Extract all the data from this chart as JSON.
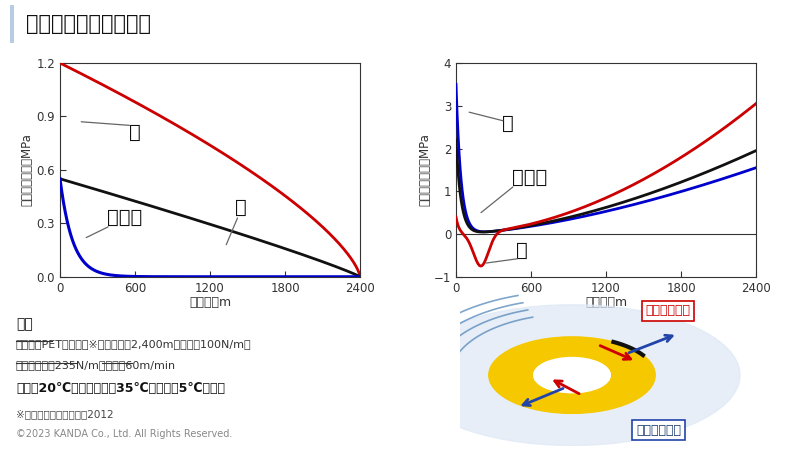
{
  "title": "数値シミュレーション",
  "title_bar_color": "#b8cce4",
  "bg_color": "#ffffff",
  "left_ylabel": "半径方向応力，MPa",
  "right_ylabel": "円周方向応力，MPa",
  "xlabel": "巻き長，m",
  "xlim": [
    0,
    2400
  ],
  "left_ylim": [
    0,
    1.2
  ],
  "right_ylim": [
    -1,
    4
  ],
  "left_yticks": [
    0,
    0.3,
    0.6,
    0.9,
    1.2
  ],
  "right_yticks": [
    -1,
    0,
    1,
    2,
    3,
    4
  ],
  "xticks": [
    0,
    600,
    1200,
    1800,
    2400
  ],
  "colors": {
    "summer": "#cc0000",
    "spring_autumn": "#111111",
    "winter": "#0000cc"
  },
  "conditions_title": "条件",
  "conditions_line1": "ウェブ：PETフィルム※、巻き長：2,400m、張力：100N/m、",
  "conditions_line2": "ニップ荷重：235N/m、速度：60m/min",
  "conditions_line3": "温度：20℃（春・秋）、35℃（夏）、5℃（冬）",
  "footnote1": "※神田敏浩，博士論文，2012",
  "footnote2": "©2023 KANDA Co., Ltd. All Rights Reserved.",
  "label_summer": "夏",
  "label_spring_autumn": "春・秋",
  "label_winter": "冬",
  "radial_label": "半径方向応力",
  "hoop_label": "円周方向応力"
}
